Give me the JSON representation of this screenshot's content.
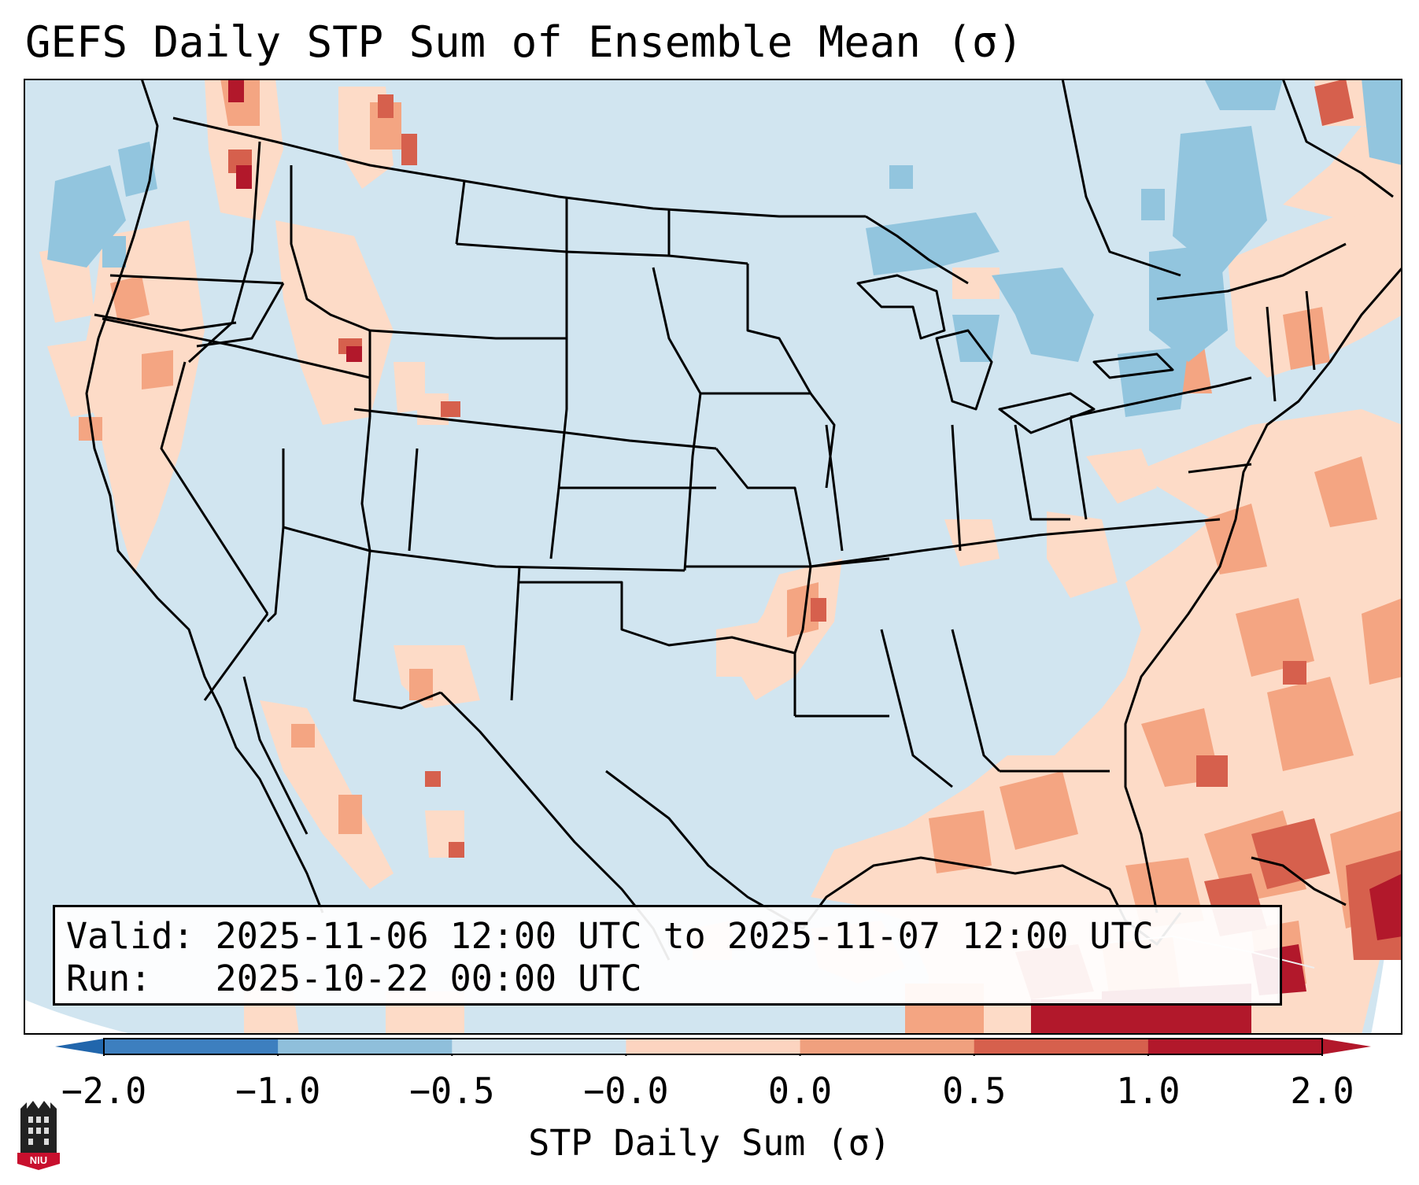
{
  "title": "GEFS Daily STP Sum of Ensemble Mean (σ)",
  "info": {
    "valid_line": "Valid: 2025-11-06 12:00 UTC to 2025-11-07 12:00 UTC",
    "run_line": "Run:   2025-10-22 00:00 UTC"
  },
  "colorbar": {
    "label": "STP Daily Sum (σ)",
    "ticks": [
      "−2.0",
      "−1.0",
      "−0.5",
      "−0.0",
      "0.0",
      "0.5",
      "1.0",
      "2.0"
    ],
    "colors": [
      "#3d7fbf",
      "#8fbfdb",
      "#cfe3ef",
      "#f7f7f7",
      "#fcd4c0",
      "#f0a07e",
      "#d6604d",
      "#b2182b"
    ],
    "under_color": "#2166ac",
    "over_color": "#b2182b"
  },
  "map": {
    "background_color": "#d1e5f0",
    "field_colors": {
      "light_pink": "#fddbc7",
      "salmon": "#f4a582",
      "red": "#d6604d",
      "dark_red": "#b2182b",
      "light_blue": "#92c5de"
    }
  },
  "logo": {
    "text": "NIU"
  }
}
